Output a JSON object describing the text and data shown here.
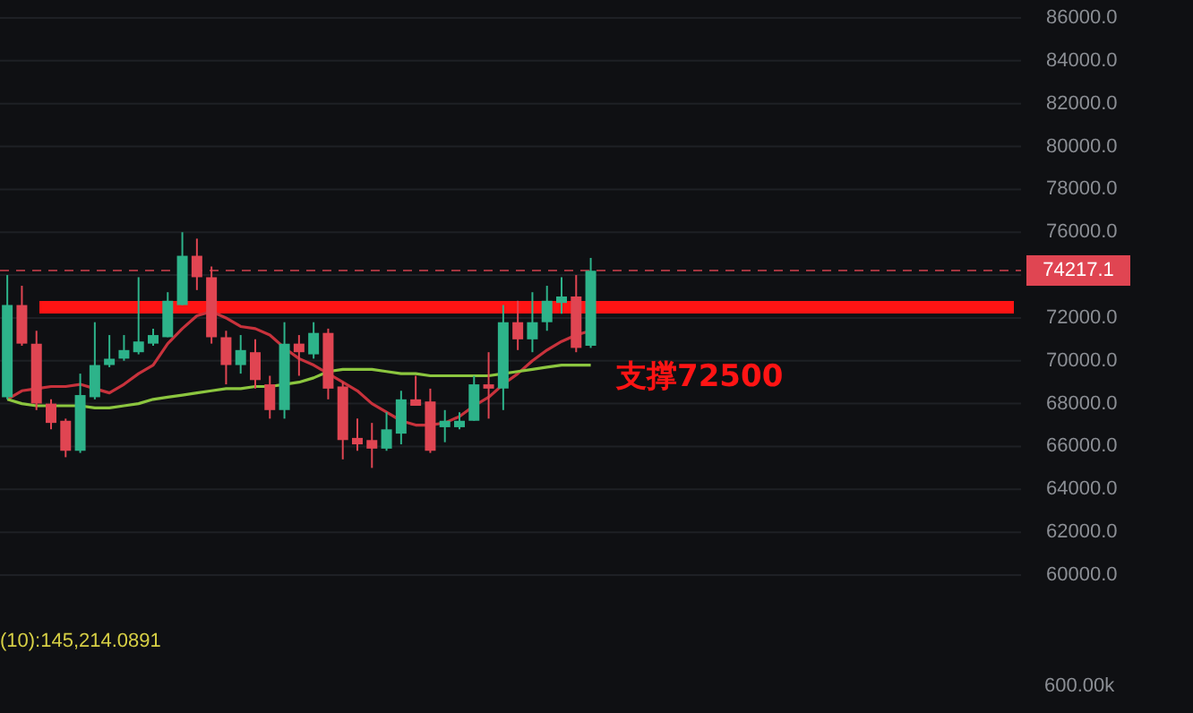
{
  "chart_data": {
    "type": "candlestick",
    "categories": [
      null,
      null,
      null,
      null,
      null,
      null,
      null,
      null,
      null,
      null,
      null,
      null,
      null,
      null,
      null,
      null,
      null,
      null,
      null,
      null,
      null,
      null,
      null,
      null,
      null,
      null,
      null,
      null,
      null,
      null,
      null,
      null,
      null,
      null,
      null,
      null,
      null,
      null,
      null,
      null,
      null,
      null,
      null,
      null,
      null,
      null,
      null,
      null,
      null,
      null,
      null,
      null,
      null,
      null,
      null,
      null,
      null,
      null,
      null,
      null,
      null,
      null,
      null,
      null,
      null,
      null,
      null,
      null,
      null,
      null
    ],
    "ohlc": [
      [
        68300,
        74000,
        68200,
        72600
      ],
      [
        72600,
        73500,
        70700,
        70800
      ],
      [
        70800,
        71400,
        67700,
        68000
      ],
      [
        68000,
        68200,
        66800,
        67100
      ],
      [
        67200,
        67300,
        65500,
        65800
      ],
      [
        65800,
        69400,
        65700,
        68400
      ],
      [
        68300,
        71800,
        68200,
        69800
      ],
      [
        69800,
        71200,
        69700,
        70100
      ],
      [
        70100,
        71200,
        70000,
        70500
      ],
      [
        70400,
        73900,
        70300,
        70900
      ],
      [
        70800,
        71500,
        70700,
        71200
      ],
      [
        71100,
        73200,
        71100,
        72800
      ],
      [
        72600,
        76000,
        72600,
        74900
      ],
      [
        74900,
        75700,
        73300,
        73900
      ],
      [
        73900,
        74400,
        70800,
        71100
      ],
      [
        71100,
        71400,
        68900,
        69800
      ],
      [
        69800,
        71200,
        69400,
        70500
      ],
      [
        70400,
        71000,
        68700,
        69100
      ],
      [
        68900,
        69300,
        67300,
        67700
      ],
      [
        67700,
        71800,
        67300,
        70800
      ],
      [
        70800,
        71200,
        69300,
        70400
      ],
      [
        70300,
        71800,
        70100,
        71300
      ],
      [
        71300,
        71500,
        68200,
        68700
      ],
      [
        68800,
        69000,
        65400,
        66300
      ],
      [
        66400,
        67300,
        65800,
        66100
      ],
      [
        66300,
        67100,
        65000,
        65900
      ],
      [
        65900,
        67600,
        65800,
        66800
      ],
      [
        66600,
        68600,
        66100,
        68200
      ],
      [
        68200,
        69300,
        67900,
        67900
      ],
      [
        68100,
        68700,
        65700,
        65800
      ],
      [
        66900,
        67700,
        66200,
        67200
      ],
      [
        66900,
        67600,
        66800,
        67200
      ],
      [
        67200,
        69300,
        67200,
        68900
      ],
      [
        68900,
        70400,
        67300,
        68700
      ],
      [
        68700,
        72600,
        67700,
        71800
      ],
      [
        71800,
        72800,
        70500,
        71000
      ],
      [
        71000,
        73200,
        70400,
        71800
      ],
      [
        71800,
        73500,
        71400,
        72800
      ],
      [
        72700,
        73900,
        72200,
        73000
      ],
      [
        73000,
        74000,
        70400,
        70600
      ],
      [
        70700,
        74800,
        70600,
        74200
      ],
      null,
      null,
      null,
      null,
      null,
      null,
      null,
      null,
      null,
      null,
      null,
      null,
      null,
      null,
      null,
      null,
      null,
      null,
      null,
      null,
      null,
      null,
      null,
      null,
      null,
      null,
      null,
      null,
      null
    ],
    "colors": [
      "#2db38a",
      "#e04552",
      "#e04552",
      "#e04552",
      "#e04552",
      "#2db38a",
      "#2db38a",
      "#2db38a",
      "#2db38a",
      "#2db38a",
      "#2db38a",
      "#2db38a",
      "#2db38a",
      "#e04552",
      "#e04552",
      "#e04552",
      "#2db38a",
      "#e04552",
      "#e04552",
      "#2db38a",
      "#e04552",
      "#2db38a",
      "#e04552",
      "#e04552",
      "#e04552",
      "#e04552",
      "#2db38a",
      "#2db38a",
      "#e04552",
      "#e04552",
      "#2db38a",
      "#2db38a",
      "#2db38a",
      "#e04552",
      "#2db38a",
      "#e04552",
      "#2db38a",
      "#2db38a",
      "#2db38a",
      "#e04552",
      "#2db38a",
      null,
      null,
      null,
      null,
      null,
      null,
      null,
      null,
      null,
      null,
      null,
      null,
      null,
      null,
      null,
      null,
      null,
      null,
      null,
      null,
      null,
      null,
      null,
      null,
      null,
      null,
      null,
      null,
      null
    ],
    "series": [
      {
        "type": "line",
        "color": "#c8323c",
        "values": [
          68200,
          68600,
          68700,
          68800,
          68800,
          68900,
          68700,
          68500,
          68900,
          69400,
          69800,
          70800,
          71500,
          72100,
          72300,
          72000,
          71600,
          71500,
          71200,
          70600,
          70100,
          69800,
          69400,
          69000,
          68600,
          68000,
          67600,
          67200,
          67000,
          67000,
          67100,
          67400,
          67900,
          68300,
          68900,
          69400,
          70000,
          70500,
          70900,
          71200,
          71400,
          null,
          null,
          null,
          null,
          null,
          null,
          null,
          null,
          null,
          null,
          null,
          null,
          null,
          null,
          null,
          null,
          null,
          null,
          null,
          null,
          null,
          null,
          null,
          null,
          null,
          null,
          null,
          null,
          null
        ]
      },
      {
        "type": "line",
        "color": "#8cc63f",
        "values": [
          68200,
          68000,
          67900,
          67900,
          67900,
          67900,
          67800,
          67800,
          67900,
          68000,
          68200,
          68300,
          68400,
          68500,
          68600,
          68700,
          68700,
          68800,
          68800,
          68900,
          69000,
          69200,
          69500,
          69600,
          69600,
          69600,
          69500,
          69400,
          69400,
          69300,
          69300,
          69300,
          69300,
          69300,
          69400,
          69500,
          69600,
          69700,
          69800,
          69800,
          69800,
          null,
          null,
          null,
          null,
          null,
          null,
          null,
          null,
          null,
          null,
          null,
          null,
          null,
          null,
          null,
          null,
          null,
          null,
          null,
          null,
          null,
          null,
          null,
          null,
          null,
          null,
          null,
          null,
          null
        ]
      }
    ],
    "ylim": [
      60000,
      86000
    ],
    "yticks": [
      {
        "value": 60000,
        "label": "60000.0"
      },
      {
        "value": 62000,
        "label": "62000.0"
      },
      {
        "value": 64000,
        "label": "64000.0"
      },
      {
        "value": 66000,
        "label": "66000.0"
      },
      {
        "value": 68000,
        "label": "68000.0"
      },
      {
        "value": 70000,
        "label": "70000.0"
      },
      {
        "value": 72000,
        "label": "72000.0"
      },
      {
        "value": 74000,
        "label": null
      },
      {
        "value": 76000,
        "label": "76000.0"
      },
      {
        "value": 78000,
        "label": "78000.0"
      },
      {
        "value": 80000,
        "label": "80000.0"
      },
      {
        "value": 82000,
        "label": "82000.0"
      },
      {
        "value": 84000,
        "label": "84000.0"
      },
      {
        "value": 86000,
        "label": "86000.0"
      }
    ],
    "grid": "y",
    "ref_lines": [
      {
        "axis": "y",
        "value": 74217.1,
        "label": "74217.1",
        "color": "#e04552",
        "line_style": "dashed"
      },
      {
        "axis": "y",
        "value": 72500,
        "label": "支撑72500",
        "color": "#ff1414",
        "line_style": "solid"
      }
    ],
    "annotations": [
      "(10):145,214.0891",
      "600.00k"
    ]
  }
}
